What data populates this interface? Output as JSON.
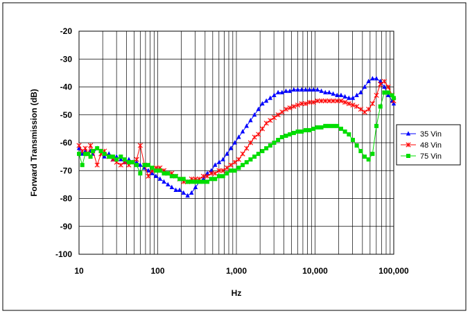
{
  "chart_data": {
    "type": "line",
    "xscale": "log",
    "xlim": [
      10,
      100000
    ],
    "ylim": [
      -100,
      -20
    ],
    "xlabel": "Hz",
    "ylabel": "Forward Transmission (dB)",
    "xticks": [
      "10",
      "100",
      "1,000",
      "10,000",
      "100,000"
    ],
    "yticks": [
      "-20",
      "-30",
      "-40",
      "-50",
      "-60",
      "-70",
      "-80",
      "-90",
      "-100"
    ],
    "grid": true,
    "legend_position": "right",
    "series": [
      {
        "name": "35 Vin",
        "color": "#0000ff",
        "marker": "triangle",
        "x": [
          10,
          11,
          12,
          13,
          14,
          15,
          17,
          19,
          21,
          24,
          27,
          30,
          34,
          38,
          43,
          48,
          54,
          60,
          68,
          76,
          85,
          95,
          107,
          120,
          135,
          151,
          170,
          190,
          213,
          240,
          269,
          302,
          339,
          380,
          427,
          479,
          537,
          603,
          676,
          759,
          851,
          955,
          1072,
          1202,
          1349,
          1514,
          1698,
          1905,
          2138,
          2399,
          2692,
          3020,
          3388,
          3802,
          4266,
          4786,
          5370,
          6026,
          6761,
          7586,
          8511,
          9550,
          10715,
          12023,
          13490,
          15136,
          16982,
          19055,
          21380,
          23988,
          26915,
          30200,
          33884,
          38019,
          42658,
          47863,
          53703,
          60256,
          67608,
          75858,
          85114,
          95499,
          100000
        ],
        "y": [
          -62,
          -64,
          -63,
          -64,
          -63,
          -64,
          -62,
          -63,
          -65,
          -64,
          -66,
          -65,
          -66,
          -67,
          -66,
          -67,
          -67,
          -68,
          -69,
          -70,
          -71,
          -72,
          -73,
          -74,
          -75,
          -76,
          -77,
          -77,
          -78,
          -79,
          -78,
          -76,
          -74,
          -73,
          -71,
          -70,
          -68,
          -67,
          -66,
          -64,
          -62,
          -60,
          -58,
          -56,
          -54,
          -52,
          -50,
          -48,
          -46,
          -45,
          -44,
          -43,
          -42,
          -42,
          -41.5,
          -41.5,
          -41,
          -41,
          -41,
          -41,
          -41,
          -41,
          -41,
          -41.5,
          -42,
          -42,
          -42.5,
          -43,
          -43,
          -43.5,
          -44,
          -44,
          -43,
          -42,
          -40,
          -38,
          -37,
          -37,
          -38,
          -40,
          -43,
          -45,
          -46
        ]
      },
      {
        "name": "48 Vin",
        "color": "#ff0000",
        "marker": "x",
        "x": [
          10,
          11,
          12,
          13,
          14,
          15,
          17,
          19,
          21,
          24,
          27,
          30,
          34,
          38,
          43,
          48,
          54,
          60,
          68,
          76,
          85,
          95,
          107,
          120,
          135,
          151,
          170,
          190,
          213,
          240,
          269,
          302,
          339,
          380,
          427,
          479,
          537,
          603,
          676,
          759,
          851,
          955,
          1072,
          1202,
          1349,
          1514,
          1698,
          1905,
          2138,
          2399,
          2692,
          3020,
          3388,
          3802,
          4266,
          4786,
          5370,
          6026,
          6761,
          7586,
          8511,
          9550,
          10715,
          12023,
          13490,
          15136,
          16982,
          19055,
          21380,
          23988,
          26915,
          30200,
          33884,
          38019,
          42658,
          47863,
          53703,
          60256,
          67608,
          75858,
          85114,
          95499,
          100000
        ],
        "y": [
          -61,
          -63,
          -62,
          -64,
          -61,
          -63,
          -68,
          -64,
          -63,
          -65,
          -66,
          -67,
          -68,
          -67,
          -68,
          -67,
          -66,
          -61,
          -68,
          -72,
          -70,
          -69,
          -69,
          -70,
          -71,
          -71,
          -72,
          -73,
          -74,
          -74,
          -73,
          -73,
          -73,
          -72,
          -72,
          -71,
          -71,
          -70,
          -70,
          -69,
          -68,
          -67,
          -66,
          -64,
          -62,
          -60,
          -58,
          -57,
          -55,
          -53,
          -52,
          -51,
          -50,
          -49,
          -48,
          -47.5,
          -47,
          -46.5,
          -46,
          -46,
          -45.5,
          -45.5,
          -45,
          -45,
          -45,
          -45,
          -45,
          -45,
          -45,
          -45.5,
          -46,
          -46.5,
          -47,
          -48,
          -49,
          -48,
          -46,
          -43,
          -39,
          -38,
          -40,
          -43,
          -45
        ]
      },
      {
        "name": "75 Vin",
        "color": "#00dd00",
        "marker": "square",
        "x": [
          10,
          11,
          12,
          13,
          14,
          15,
          17,
          19,
          21,
          24,
          27,
          30,
          34,
          38,
          43,
          48,
          54,
          60,
          68,
          76,
          85,
          95,
          107,
          120,
          135,
          151,
          170,
          190,
          213,
          240,
          269,
          302,
          339,
          380,
          427,
          479,
          537,
          603,
          676,
          759,
          851,
          955,
          1072,
          1202,
          1349,
          1514,
          1698,
          1905,
          2138,
          2399,
          2692,
          3020,
          3388,
          3802,
          4266,
          4786,
          5370,
          6026,
          6761,
          7586,
          8511,
          9550,
          10715,
          12023,
          13490,
          15136,
          16982,
          19055,
          21380,
          23988,
          26915,
          30200,
          33884,
          38019,
          42658,
          47863,
          53703,
          60256,
          67608,
          75858,
          85114,
          95499,
          100000
        ],
        "y": [
          -64,
          -68,
          -64,
          -64,
          -65,
          -63,
          -62,
          -63,
          -64,
          -65,
          -65,
          -66,
          -65,
          -66,
          -67,
          -67,
          -68,
          -71,
          -68,
          -68,
          -69,
          -70,
          -70,
          -71,
          -71,
          -72,
          -72,
          -73,
          -73,
          -74,
          -74,
          -74,
          -74,
          -74,
          -74,
          -73,
          -73,
          -72,
          -72,
          -71,
          -70,
          -70,
          -69,
          -68,
          -67,
          -66,
          -65,
          -64,
          -63,
          -62,
          -61,
          -60,
          -59,
          -58,
          -57.5,
          -57,
          -56.5,
          -56,
          -56,
          -55.5,
          -55.5,
          -55,
          -54.5,
          -54.5,
          -54,
          -54,
          -54,
          -54,
          -55,
          -56,
          -57,
          -59,
          -61,
          -63,
          -65,
          -66,
          -64,
          -54,
          -47,
          -42,
          -42,
          -43,
          -44
        ]
      }
    ]
  }
}
